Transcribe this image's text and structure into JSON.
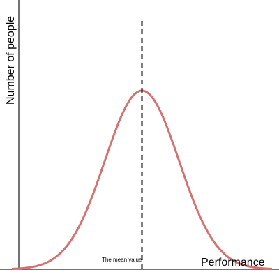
{
  "chart_data": {
    "type": "line",
    "title": "",
    "xlabel": "Performance",
    "ylabel": "Number of people",
    "series": [
      {
        "x": [
          -3.5,
          -3.0,
          -2.5,
          -2.0,
          -1.5,
          -1.0,
          -0.5,
          0.0,
          0.5,
          1.0,
          1.5,
          2.0,
          2.5,
          3.0,
          3.5
        ],
        "values": [
          0.002,
          0.011,
          0.044,
          0.135,
          0.325,
          0.607,
          0.882,
          1.0,
          0.882,
          0.607,
          0.325,
          0.135,
          0.044,
          0.011,
          0.002
        ]
      }
    ],
    "mean": 0.0,
    "annotations": [
      {
        "text": "The mean value"
      }
    ],
    "xlim": [
      -3.5,
      3.5
    ],
    "ylim": [
      0,
      1.0
    ],
    "grid": false,
    "colors": {
      "curve": "#d27373",
      "axis": "#444444",
      "mean_line": "#000000"
    }
  }
}
